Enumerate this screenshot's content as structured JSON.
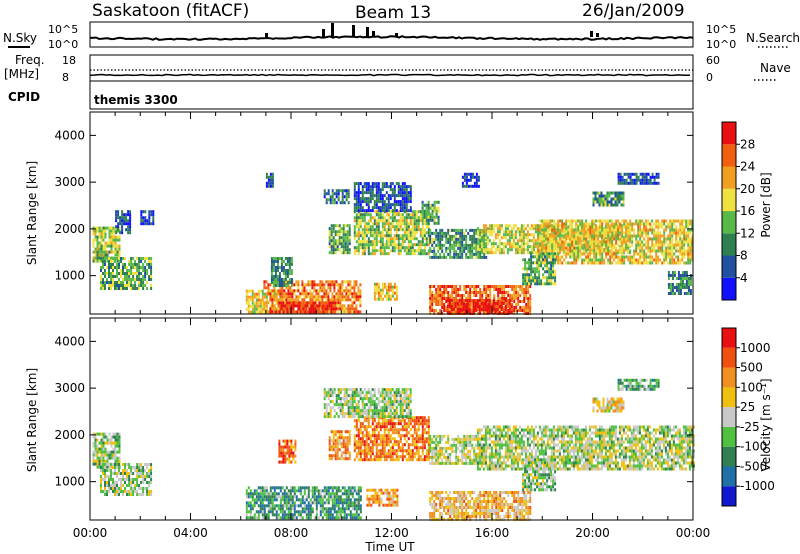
{
  "header": {
    "station": "Saskatoon (fitACF)",
    "beam": "Beam 13",
    "date": "26/Jan/2009"
  },
  "noise_panel": {
    "left_label": "N.Sky",
    "right_label": "N.Search",
    "left_ticks": [
      "10^5",
      "10^0"
    ],
    "right_ticks": [
      "10^5",
      "10^0"
    ]
  },
  "freq_panel": {
    "left_label_line1": "Freq.",
    "left_label_line2": "[MHz]",
    "right_label": "Nave",
    "left_ticks": [
      "18",
      "8"
    ],
    "right_ticks": [
      "60",
      "0"
    ]
  },
  "cpid_panel": {
    "label": "CPID",
    "value": "themis 3300"
  },
  "x_axis": {
    "label": "Time UT",
    "ticks": [
      "00:00",
      "04:00",
      "08:00",
      "12:00",
      "16:00",
      "20:00",
      "00:00"
    ]
  },
  "chart_data": [
    {
      "type": "heatmap",
      "name": "power",
      "xlabel": "Time UT",
      "ylabel": "Slant Range [km]",
      "xlim": [
        0,
        24
      ],
      "ylim": [
        180,
        4500
      ],
      "yticks": [
        "1000",
        "2000",
        "3000",
        "4000"
      ],
      "colorbar": {
        "label": "Power [dB]",
        "ticks": [
          "4",
          "8",
          "12",
          "16",
          "20",
          "24",
          "28"
        ],
        "colors": [
          "#1010ff",
          "#2050a0",
          "#2f8050",
          "#58b848",
          "#f0e040",
          "#f0a020",
          "#f06010",
          "#e81010"
        ]
      },
      "regions": [
        {
          "t": [
            0.1,
            1.2
          ],
          "r": [
            1300,
            2050
          ],
          "v": 0.5
        },
        {
          "t": [
            0.4,
            2.4
          ],
          "r": [
            700,
            1400
          ],
          "v": 0.4
        },
        {
          "t": [
            1.0,
            1.6
          ],
          "r": [
            1900,
            2400
          ],
          "v": 0.2
        },
        {
          "t": [
            2.0,
            2.5
          ],
          "r": [
            2100,
            2400
          ],
          "v": 0.15
        },
        {
          "t": [
            6.2,
            7.5
          ],
          "r": [
            200,
            700
          ],
          "v": 0.6
        },
        {
          "t": [
            6.9,
            10.8
          ],
          "r": [
            200,
            900
          ],
          "v": 0.75
        },
        {
          "t": [
            7.5,
            9.8
          ],
          "r": [
            200,
            450
          ],
          "v": 0.95
        },
        {
          "t": [
            7.2,
            8.0
          ],
          "r": [
            800,
            1400
          ],
          "v": 0.3
        },
        {
          "t": [
            7.0,
            7.3
          ],
          "r": [
            2900,
            3200
          ],
          "v": 0.2
        },
        {
          "t": [
            9.5,
            10.3
          ],
          "r": [
            1500,
            2100
          ],
          "v": 0.4
        },
        {
          "t": [
            10.5,
            13.5
          ],
          "r": [
            1500,
            2400
          ],
          "v": 0.5
        },
        {
          "t": [
            9.3,
            10.3
          ],
          "r": [
            2550,
            2850
          ],
          "v": 0.25
        },
        {
          "t": [
            10.5,
            12.8
          ],
          "r": [
            2400,
            3000
          ],
          "v": 0.2
        },
        {
          "t": [
            11.3,
            12.2
          ],
          "r": [
            500,
            850
          ],
          "v": 0.6
        },
        {
          "t": [
            13.2,
            13.9
          ],
          "r": [
            2100,
            2600
          ],
          "v": 0.4
        },
        {
          "t": [
            13.5,
            17.5
          ],
          "r": [
            200,
            800
          ],
          "v": 0.8
        },
        {
          "t": [
            14.2,
            16.8
          ],
          "r": [
            200,
            500
          ],
          "v": 0.95
        },
        {
          "t": [
            13.5,
            15.8
          ],
          "r": [
            1400,
            2000
          ],
          "v": 0.35
        },
        {
          "t": [
            14.8,
            15.5
          ],
          "r": [
            2900,
            3200
          ],
          "v": 0.15
        },
        {
          "t": [
            15.4,
            21.5
          ],
          "r": [
            1500,
            2100
          ],
          "v": 0.55
        },
        {
          "t": [
            17.8,
            24.0
          ],
          "r": [
            1300,
            2200
          ],
          "v": 0.6
        },
        {
          "t": [
            17.2,
            18.5
          ],
          "r": [
            800,
            1500
          ],
          "v": 0.4
        },
        {
          "t": [
            20.0,
            21.2
          ],
          "r": [
            2500,
            2800
          ],
          "v": 0.35
        },
        {
          "t": [
            21.0,
            22.6
          ],
          "r": [
            2950,
            3200
          ],
          "v": 0.2
        },
        {
          "t": [
            23.0,
            23.9
          ],
          "r": [
            600,
            1100
          ],
          "v": 0.3
        }
      ]
    },
    {
      "type": "heatmap",
      "name": "velocity",
      "xlabel": "Time UT",
      "ylabel": "Slant Range [km]",
      "xlim": [
        0,
        24
      ],
      "ylim": [
        180,
        4500
      ],
      "yticks": [
        "1000",
        "2000",
        "3000",
        "4000"
      ],
      "colorbar": {
        "label": "Velocity [m s⁻¹]",
        "ticks": [
          "1000",
          "500",
          "100",
          "25",
          "-25",
          "-100",
          "-500",
          "-1000"
        ],
        "colors": [
          "#1018d0",
          "#2070a8",
          "#308050",
          "#50c040",
          "#c8c8c8",
          "#f0c010",
          "#f09020",
          "#f05010",
          "#e81010"
        ]
      },
      "regions": [
        {
          "t": [
            0.1,
            1.2
          ],
          "r": [
            1300,
            2050
          ],
          "v": 0.45
        },
        {
          "t": [
            0.4,
            2.4
          ],
          "r": [
            700,
            1400
          ],
          "v": 0.45
        },
        {
          "t": [
            6.2,
            10.8
          ],
          "r": [
            200,
            900
          ],
          "v": 0.3
        },
        {
          "t": [
            7.5,
            8.2
          ],
          "r": [
            1400,
            1900
          ],
          "v": 0.8
        },
        {
          "t": [
            9.5,
            10.3
          ],
          "r": [
            1500,
            2100
          ],
          "v": 0.7
        },
        {
          "t": [
            10.5,
            13.5
          ],
          "r": [
            1500,
            2400
          ],
          "v": 0.75
        },
        {
          "t": [
            11.0,
            12.2
          ],
          "r": [
            500,
            850
          ],
          "v": 0.7
        },
        {
          "t": [
            9.3,
            12.8
          ],
          "r": [
            2400,
            3000
          ],
          "v": 0.45
        },
        {
          "t": [
            13.5,
            17.5
          ],
          "r": [
            200,
            800
          ],
          "v": 0.62
        },
        {
          "t": [
            13.5,
            15.8
          ],
          "r": [
            1400,
            2000
          ],
          "v": 0.5
        },
        {
          "t": [
            15.4,
            24.0
          ],
          "r": [
            1300,
            2200
          ],
          "v": 0.48
        },
        {
          "t": [
            17.2,
            18.5
          ],
          "r": [
            800,
            1500
          ],
          "v": 0.42
        },
        {
          "t": [
            20.0,
            21.2
          ],
          "r": [
            2500,
            2800
          ],
          "v": 0.6
        },
        {
          "t": [
            21.0,
            22.6
          ],
          "r": [
            2950,
            3200
          ],
          "v": 0.35
        }
      ]
    }
  ]
}
